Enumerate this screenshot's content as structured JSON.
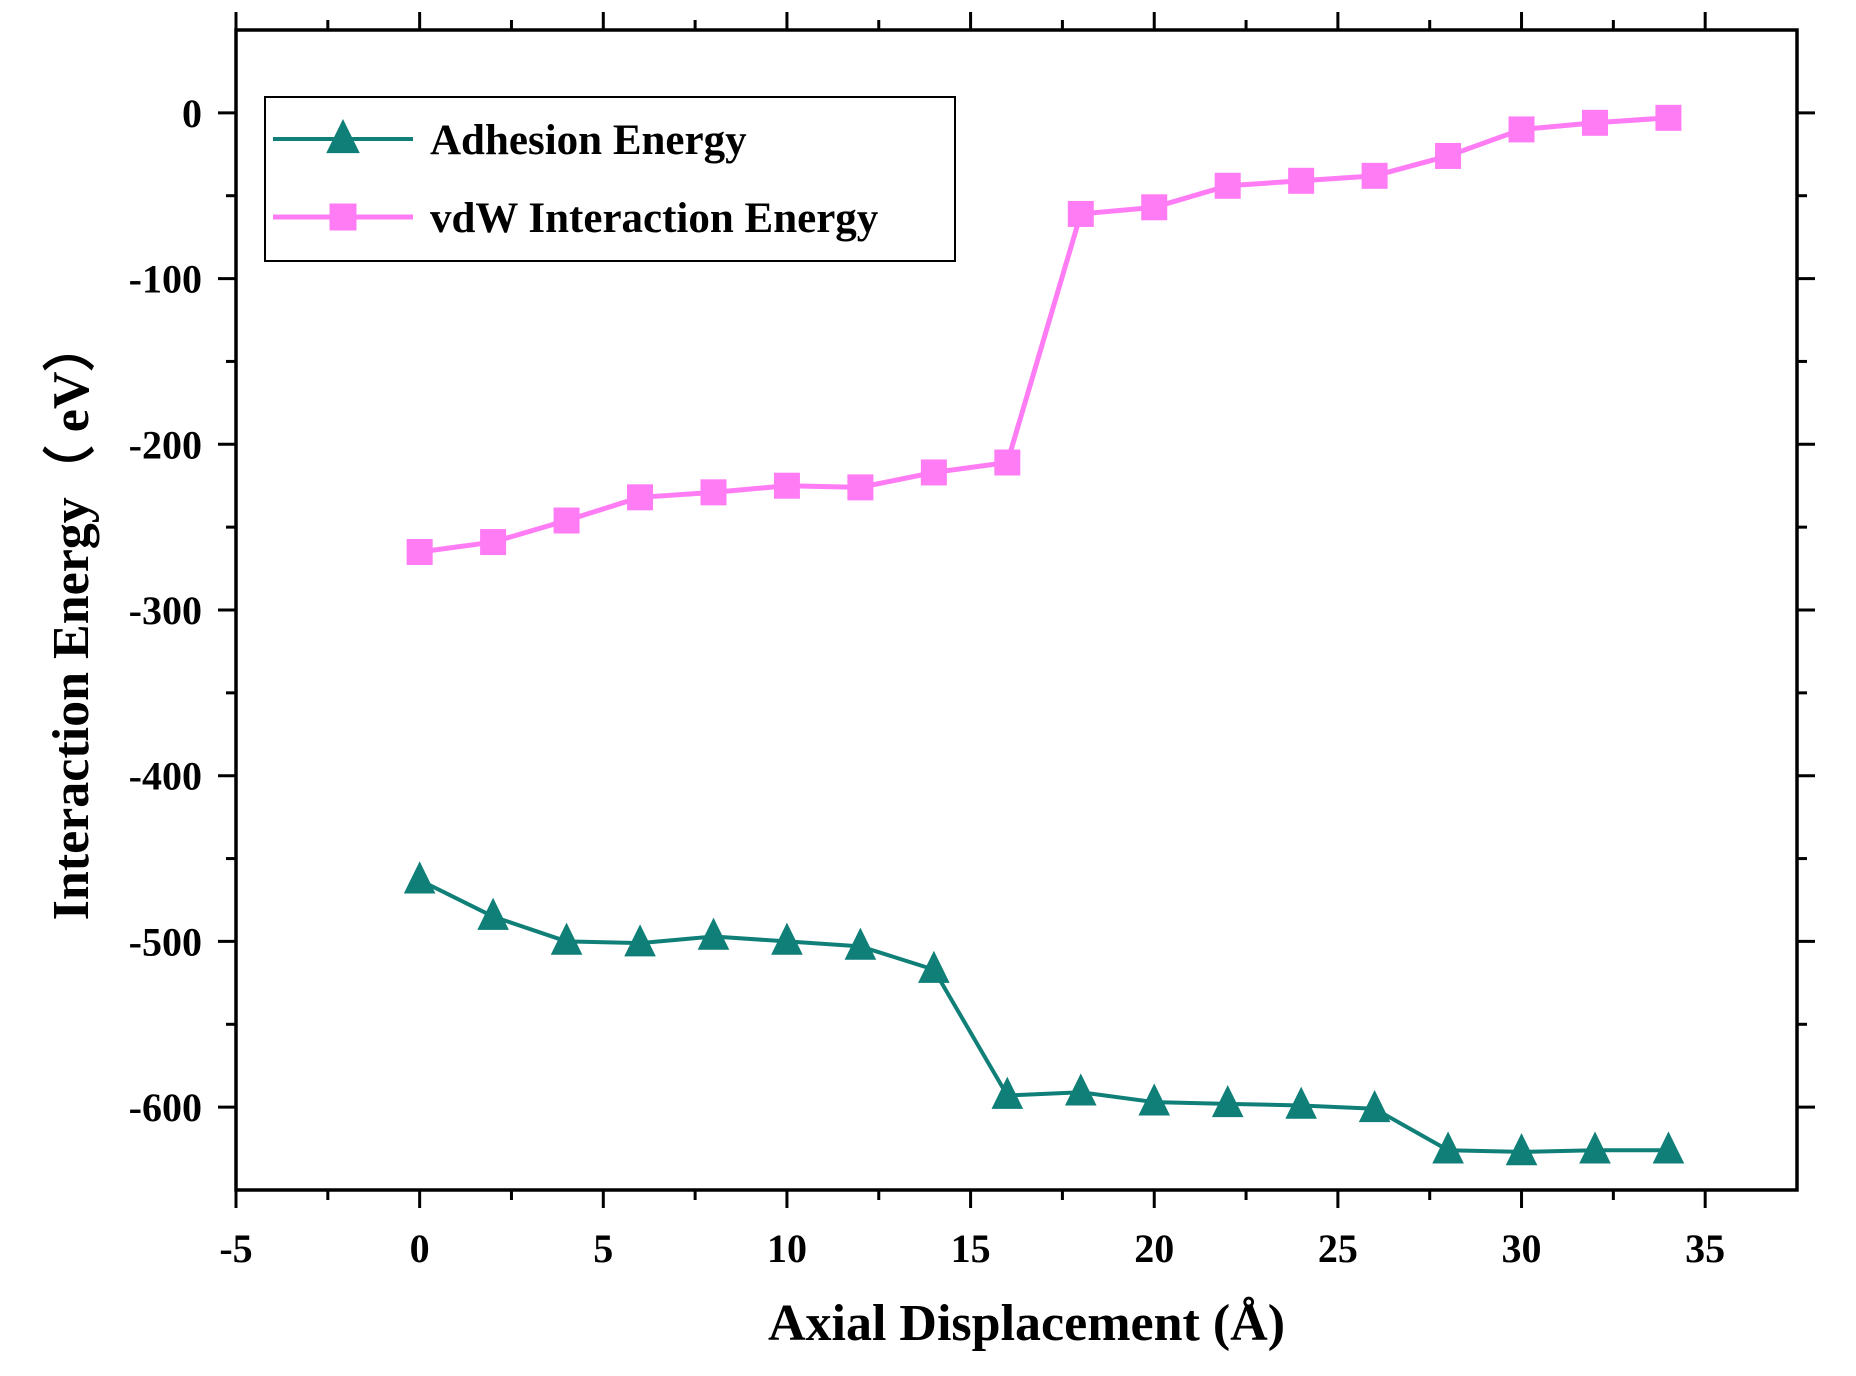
{
  "chart_data": {
    "type": "line",
    "title": "",
    "xlabel": "Axial Displacement (Å)",
    "ylabel": "Interaction Energy（ eV）",
    "xlim": [
      -5,
      37.5
    ],
    "ylim": [
      -650,
      50
    ],
    "xticks": [
      -5,
      0,
      5,
      10,
      15,
      20,
      25,
      30,
      35
    ],
    "yticks": [
      0,
      -100,
      -200,
      -300,
      -400,
      -500,
      -600
    ],
    "x_minor_step": 2.5,
    "y_minor_step": 50,
    "grid": false,
    "legend_position": "top-left",
    "x": [
      0,
      2,
      4,
      6,
      8,
      10,
      12,
      14,
      16,
      18,
      20,
      22,
      24,
      26,
      28,
      30,
      32,
      34
    ],
    "series": [
      {
        "name": "Adhesion Energy",
        "marker": "triangle",
        "color": "#0f7f78",
        "values": [
          -463,
          -485,
          -500,
          -501,
          -497,
          -500,
          -503,
          -517,
          -593,
          -591,
          -597,
          -598,
          -599,
          -601,
          -626,
          -627,
          -626,
          -626
        ]
      },
      {
        "name": "vdW Interaction Energy",
        "marker": "square",
        "color": "#ff7cf5",
        "values": [
          -265,
          -259,
          -246,
          -232,
          -229,
          -225,
          -226,
          -217,
          -211,
          -61,
          -57,
          -44,
          -41,
          -38,
          -26,
          -10,
          -6,
          -3
        ]
      }
    ]
  }
}
